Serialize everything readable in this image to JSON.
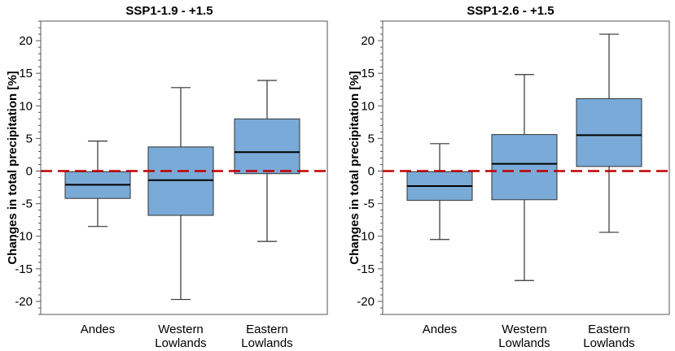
{
  "chart_data": [
    {
      "type": "box",
      "title": "SSP1-1.9 - +1.5",
      "ylabel": "Changes in total precipitation [%]",
      "ylim": [
        -22,
        23
      ],
      "yticks": [
        20,
        15,
        10,
        5,
        0,
        -5,
        -10,
        -15,
        -20
      ],
      "reference_line": 0,
      "categories": [
        "Andes",
        "Western\nLowlands",
        "Eastern\nLowlands"
      ],
      "boxes": [
        {
          "name": "Andes",
          "min": -8.5,
          "q1": -4.2,
          "median": -2.1,
          "q3": -0.1,
          "max": 4.6
        },
        {
          "name": "Western Lowlands",
          "min": -19.7,
          "q1": -6.8,
          "median": -1.4,
          "q3": 3.7,
          "max": 12.8
        },
        {
          "name": "Eastern Lowlands",
          "min": -10.8,
          "q1": -0.4,
          "median": 2.9,
          "q3": 8.0,
          "max": 13.9
        }
      ]
    },
    {
      "type": "box",
      "title": "SSP1-2.6 - +1.5",
      "ylabel": "Changes in total precipitation [%]",
      "ylim": [
        -22,
        23
      ],
      "yticks": [
        20,
        15,
        10,
        5,
        0,
        -5,
        -10,
        -15,
        -20
      ],
      "reference_line": 0,
      "categories": [
        "Andes",
        "Western\nLowlands",
        "Eastern\nLowlands"
      ],
      "boxes": [
        {
          "name": "Andes",
          "min": -10.5,
          "q1": -4.5,
          "median": -2.3,
          "q3": -0.1,
          "max": 4.2
        },
        {
          "name": "Western Lowlands",
          "min": -16.8,
          "q1": -4.4,
          "median": 1.1,
          "q3": 5.6,
          "max": 14.8
        },
        {
          "name": "Eastern Lowlands",
          "min": -9.4,
          "q1": 0.7,
          "median": 5.5,
          "q3": 11.1,
          "max": 21.0
        }
      ]
    }
  ]
}
